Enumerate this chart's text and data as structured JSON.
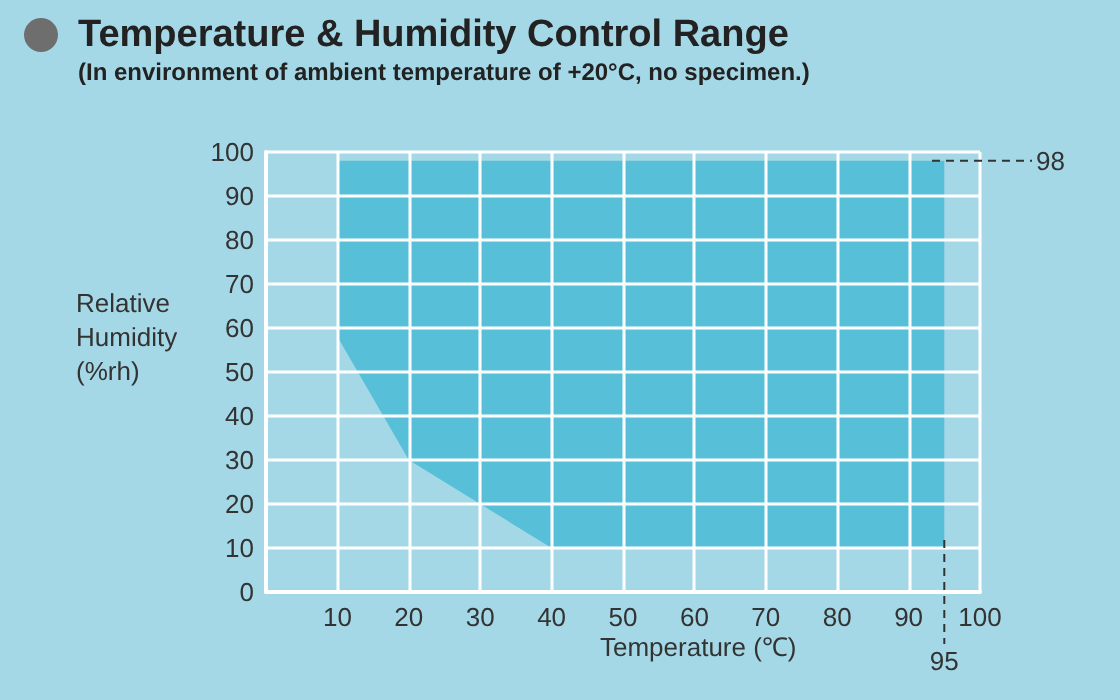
{
  "chart_data": {
    "type": "area",
    "title": "Temperature & Humidity Control Range",
    "subtitle": "(In environment of ambient temperature of +20°C, no specimen.)",
    "xlabel": "Temperature (℃)",
    "ylabel": "Relative Humidity (%rh)",
    "series": [
      {
        "color": "#57c0d8",
        "x": [
          10,
          10,
          20,
          30,
          40,
          95,
          95
        ],
        "values": [
          98,
          58,
          30,
          20,
          10,
          10,
          98
        ]
      }
    ],
    "xlim": [
      0,
      100
    ],
    "xticks": [
      10,
      20,
      30,
      40,
      50,
      60,
      70,
      80,
      90,
      100
    ],
    "ylim": [
      0,
      100
    ],
    "yticks": [
      0,
      10,
      20,
      30,
      40,
      50,
      60,
      70,
      80,
      90,
      100
    ],
    "grid": true,
    "ref_lines": [
      {
        "axis": "x",
        "value": 95,
        "label": "95",
        "line_style": "dashed",
        "color": "#333333"
      },
      {
        "axis": "y",
        "value": 98,
        "label": "98",
        "line_style": "dashed",
        "color": "#333333"
      }
    ]
  }
}
